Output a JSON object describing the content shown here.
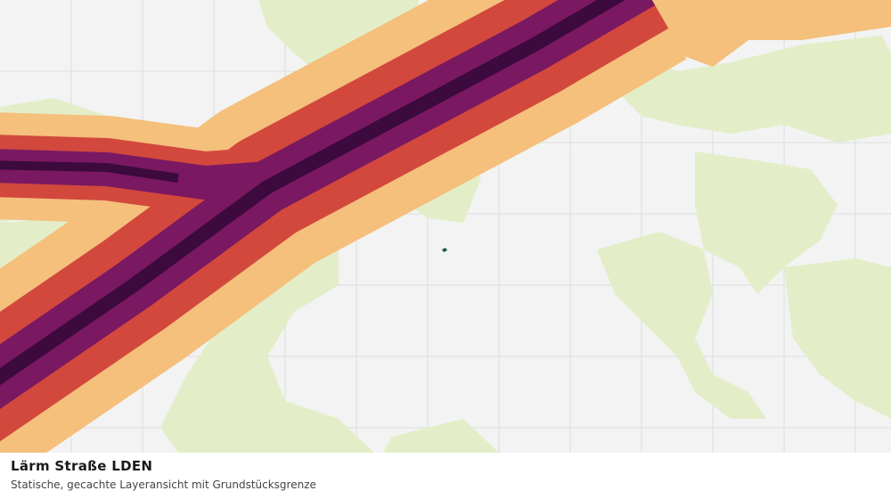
{
  "map": {
    "title": "Lärm Straße LDEN",
    "subtitle": "Statische, gecachte Layeransicht mit Grundstücksgrenze"
  }
}
